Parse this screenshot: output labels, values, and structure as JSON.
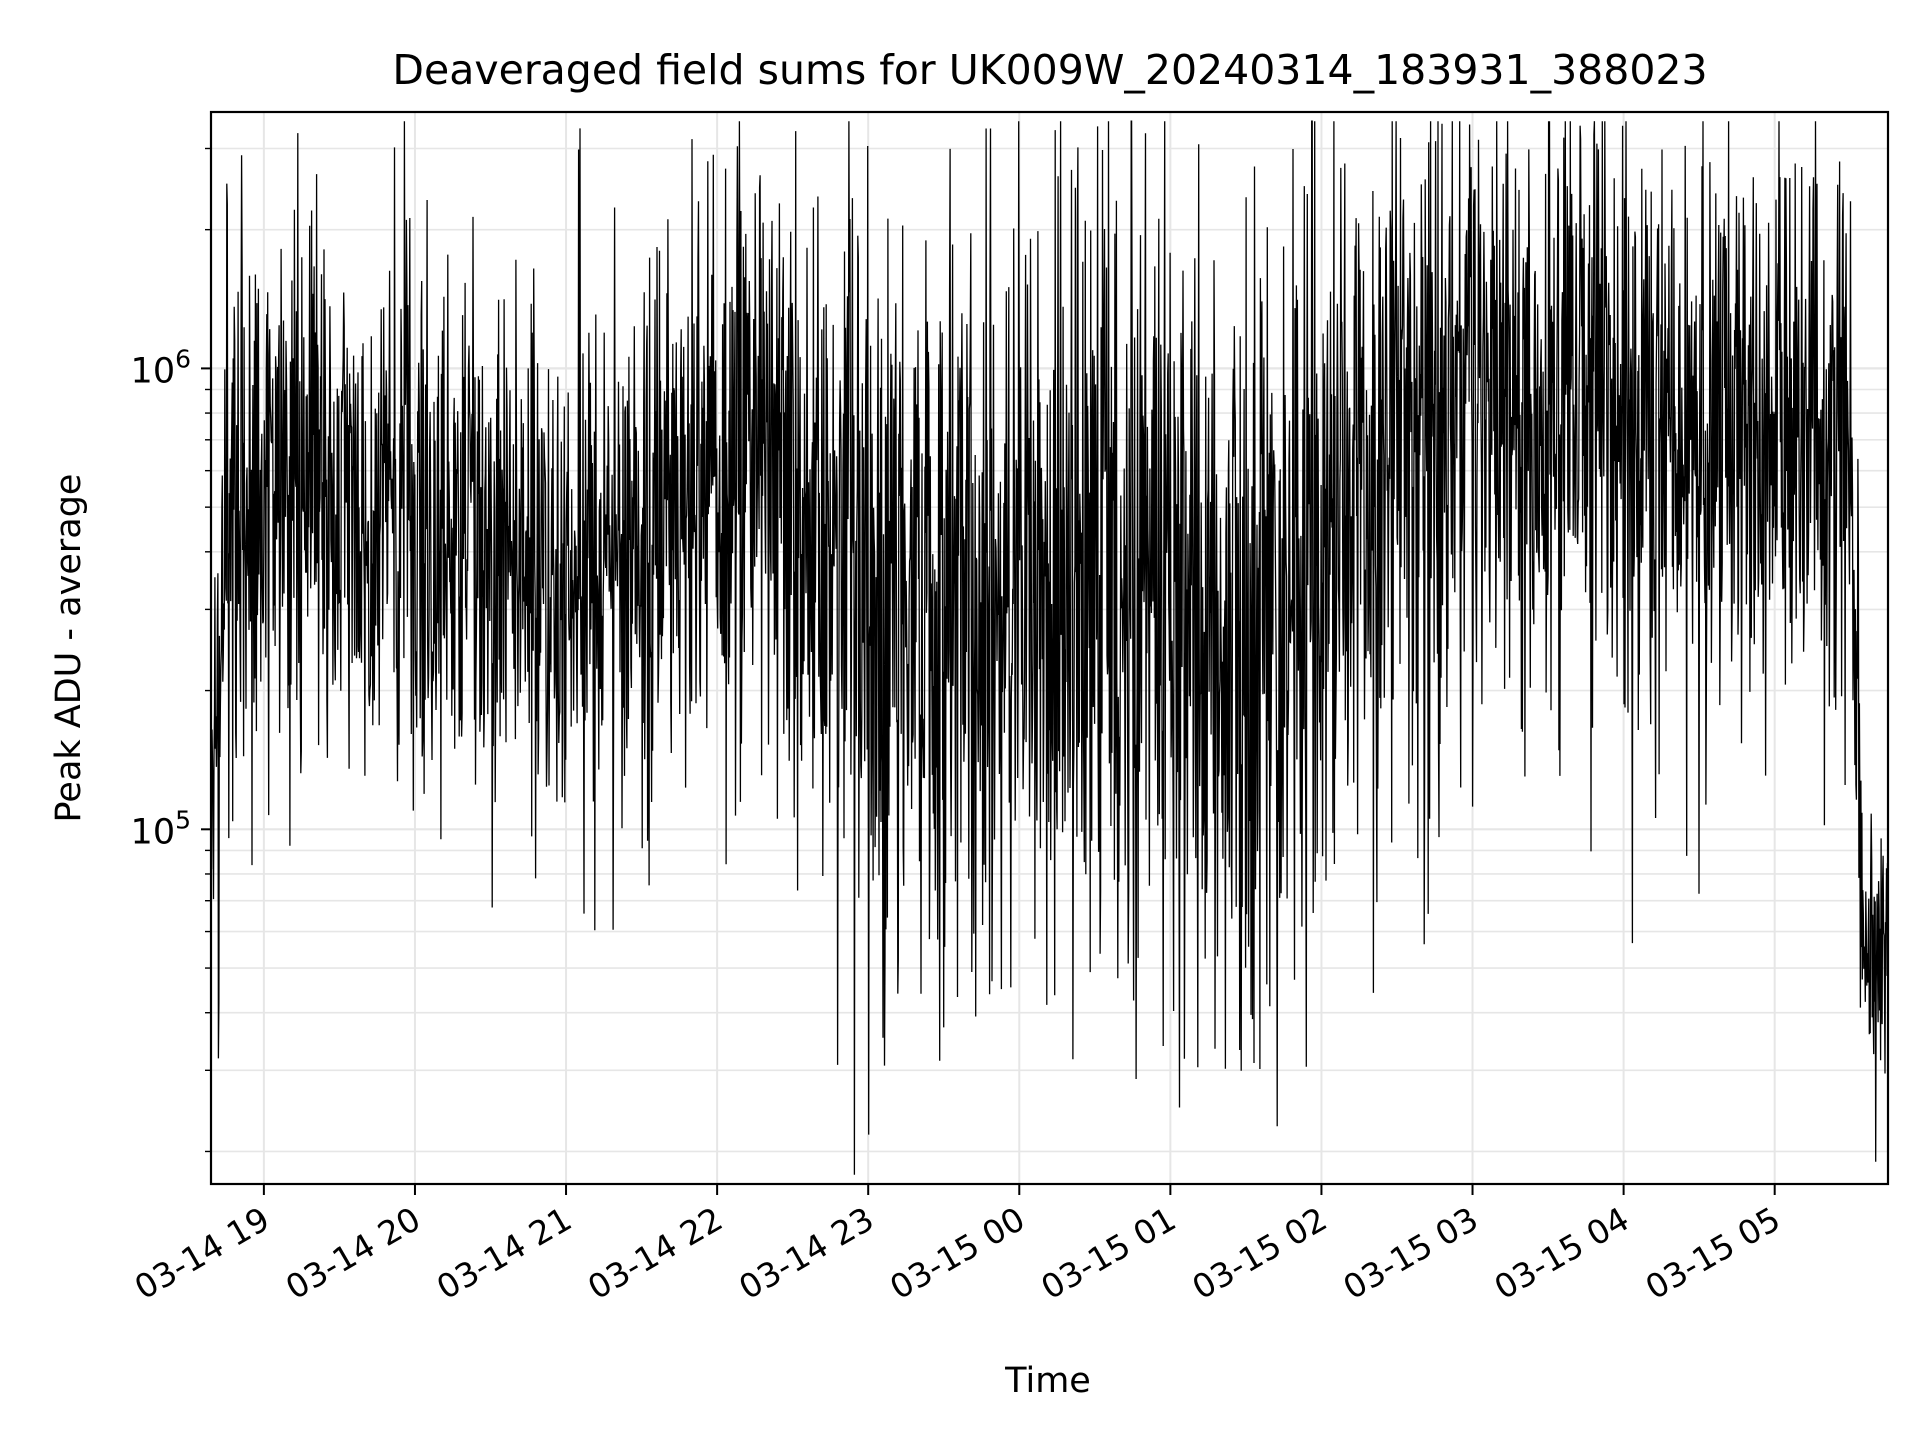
{
  "chart_data": {
    "type": "line",
    "title": "Deaveraged field sums for UK009W_20240314_183931_388023",
    "xlabel": "Time",
    "ylabel": "Peak ADU - average",
    "y_scale": "log",
    "x_ticks": [
      "03-14 19",
      "03-14 20",
      "03-14 21",
      "03-14 22",
      "03-14 23",
      "03-15 00",
      "03-15 01",
      "03-15 02",
      "03-15 03",
      "03-15 04",
      "03-15 05"
    ],
    "y_ticks": [
      {
        "value": 100000,
        "mantissa": "10",
        "exponent": "5"
      },
      {
        "value": 1000000,
        "mantissa": "10",
        "exponent": "6"
      }
    ],
    "xlim": [
      "2024-03-14 18:39",
      "2024-03-15 05:45"
    ],
    "ylim": [
      17000,
      3600000
    ],
    "grid": true,
    "line_color": "#000000",
    "grid_color": "#e6e6e6",
    "series_profile": [
      {
        "t": "2024-03-14 18:39",
        "center": 70000,
        "spread": 0.22
      },
      {
        "t": "2024-03-14 18:45",
        "center": 500000,
        "spread": 0.35
      },
      {
        "t": "2024-03-14 19:30",
        "center": 550000,
        "spread": 0.3
      },
      {
        "t": "2024-03-14 20:30",
        "center": 420000,
        "spread": 0.3
      },
      {
        "t": "2024-03-14 21:00",
        "center": 330000,
        "spread": 0.32
      },
      {
        "t": "2024-03-14 22:15",
        "center": 650000,
        "spread": 0.34
      },
      {
        "t": "2024-03-14 23:00",
        "center": 300000,
        "spread": 0.42
      },
      {
        "t": "2024-03-15 01:00",
        "center": 330000,
        "spread": 0.45
      },
      {
        "t": "2024-03-15 01:30",
        "center": 260000,
        "spread": 0.45
      },
      {
        "t": "2024-03-15 02:30",
        "center": 700000,
        "spread": 0.38
      },
      {
        "t": "2024-03-15 03:15",
        "center": 800000,
        "spread": 0.35
      },
      {
        "t": "2024-03-15 05:30",
        "center": 700000,
        "spread": 0.3
      },
      {
        "t": "2024-03-15 05:35",
        "center": 60000,
        "spread": 0.15
      },
      {
        "t": "2024-03-15 05:45",
        "center": 55000,
        "spread": 0.15
      }
    ],
    "notable_points": [
      {
        "t": "2024-03-14 18:42",
        "y": 42000
      },
      {
        "t": "2024-03-14 18:51",
        "y": 2900000
      },
      {
        "t": "2024-03-14 22:15",
        "y": 2400000
      },
      {
        "t": "2024-03-15 00:28",
        "y": 49000
      },
      {
        "t": "2024-03-15 05:02",
        "y": 2600000
      },
      {
        "t": "2024-03-15 05:40",
        "y": 19000
      }
    ]
  }
}
